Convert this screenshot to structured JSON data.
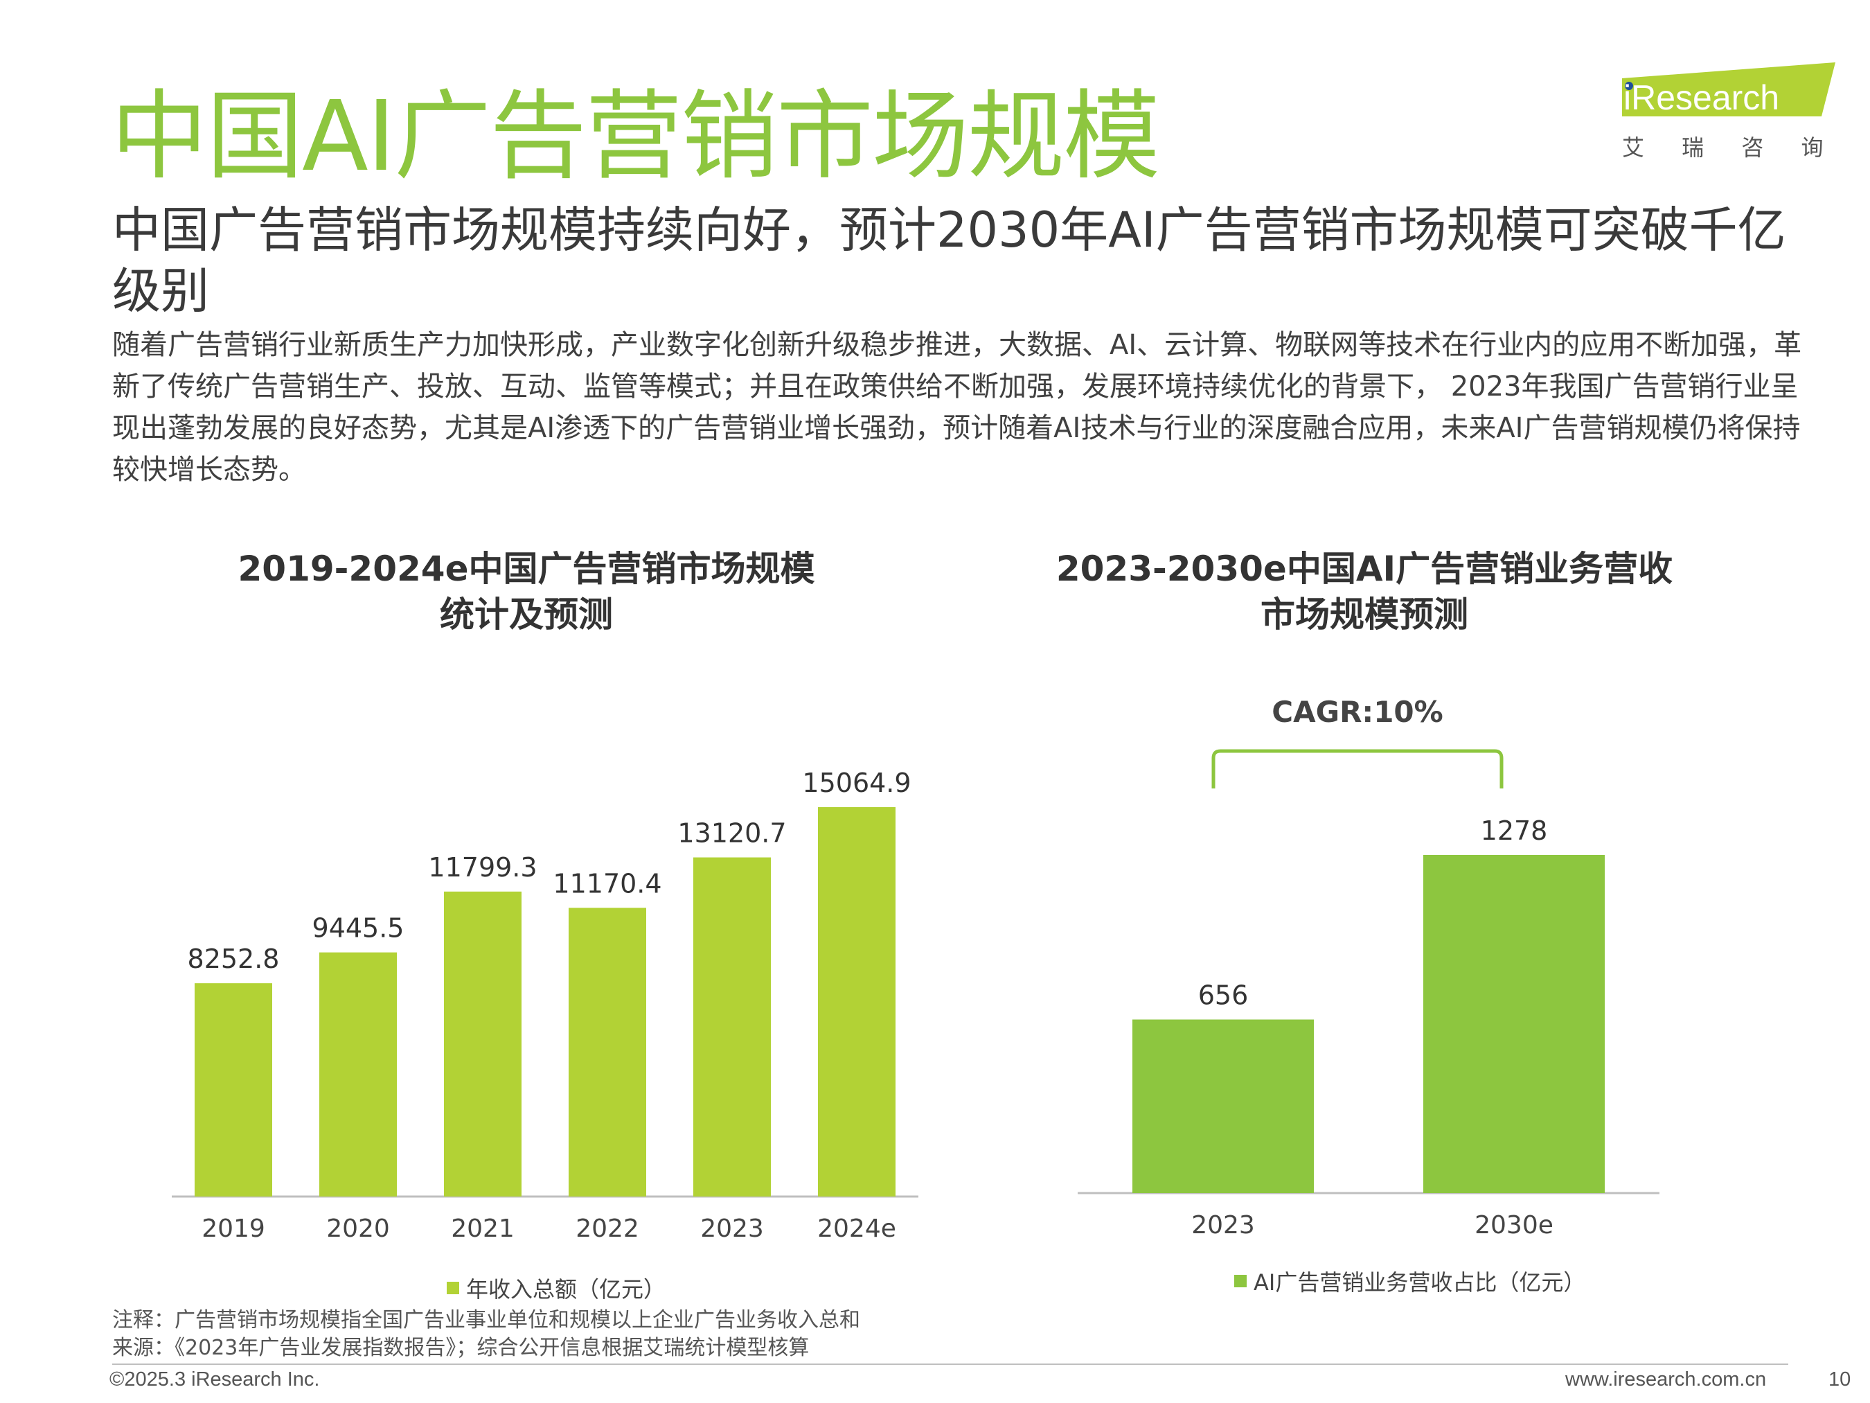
{
  "page": {
    "title": "中国AI广告营销市场规模",
    "subtitle": "中国广告营销市场规模持续向好，预计2030年AI广告营销市场规模可突破千亿级别",
    "body": "随着广告营销行业新质生产力加快形成，产业数字化创新升级稳步推进，大数据、AI、云计算、物联网等技术在行业内的应用不断加强，革新了传统广告营销生产、投放、互动、监管等模式；并且在政策供给不断加强，发展环境持续优化的背景下， 2023年我国广告营销行业呈现出蓬勃发展的良好态势，尤其是AI渗透下的广告营销业增长强劲，预计随着AI技术与行业的深度融合应用，未来AI广告营销规模仍将保持较快增长态势。"
  },
  "logo": {
    "brand": "iResearch",
    "tagline": "艾 瑞 咨 询"
  },
  "chart_data": [
    {
      "type": "bar",
      "title": "2019-2024e中国广告营销市场规模统计及预测",
      "title_lines": [
        "2019-2024e中国广告营销市场规模",
        "统计及预测"
      ],
      "categories": [
        "2019",
        "2020",
        "2021",
        "2022",
        "2023",
        "2024e"
      ],
      "series": [
        {
          "name": "年收入总额（亿元）",
          "values": [
            8252.8,
            9445.5,
            11799.3,
            11170.4,
            13120.7,
            15064.9
          ],
          "color": "#b2d235"
        }
      ],
      "value_labels": [
        "8252.8",
        "9445.5",
        "11799.3",
        "11170.4",
        "13120.7",
        "15064.9"
      ],
      "ylim": [
        0,
        15064.9
      ],
      "grid": false,
      "legend_position": "bottom"
    },
    {
      "type": "bar",
      "title": "2023-2030e中国AI广告营销业务营收市场规模预测",
      "title_lines": [
        "2023-2030e中国AI广告营销业务营收",
        "市场规模预测"
      ],
      "categories": [
        "2023",
        "2030e"
      ],
      "series": [
        {
          "name": "AI广告营销业务营收占比（亿元）",
          "values": [
            656,
            1278
          ],
          "color": "#8dc63f"
        }
      ],
      "value_labels": [
        "656",
        "1278"
      ],
      "annotation": "CAGR:10%",
      "ylim": [
        0,
        1278
      ],
      "grid": false,
      "legend_position": "bottom"
    }
  ],
  "footer": {
    "note": "注释：广告营销市场规模指全国广告业事业单位和规模以上企业广告业务收入总和",
    "source": "来源：《2023年广告业发展指数报告》；综合公开信息根据艾瑞统计模型核算",
    "copyright": "©2025.3 iResearch Inc.",
    "website": "www.iresearch.com.cn",
    "page_number": "10"
  },
  "colors": {
    "title_green": "#8dc63f",
    "chart1_bar": "#b2d235",
    "chart2_bar": "#8dc63f",
    "logo_green": "#b2d235",
    "logo_dot": "#1f4e9a"
  }
}
